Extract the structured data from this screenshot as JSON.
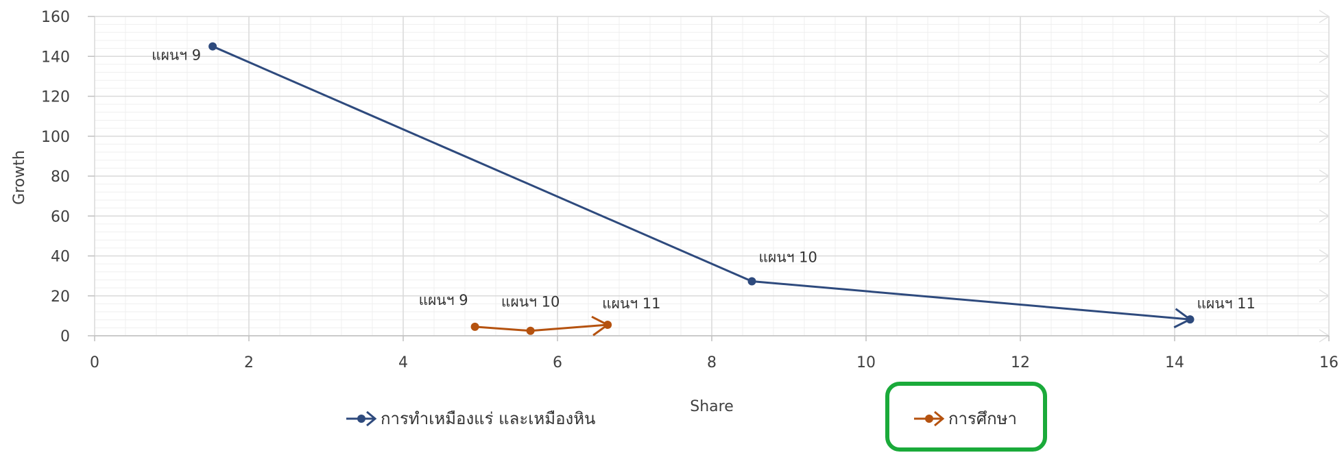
{
  "chart_data": {
    "type": "line",
    "xlabel": "Share",
    "ylabel": "Growth",
    "xlim": [
      0,
      16
    ],
    "ylim": [
      0,
      160
    ],
    "x_ticks": [
      0,
      2,
      4,
      6,
      8,
      10,
      12,
      14,
      16
    ],
    "y_ticks": [
      0,
      20,
      40,
      60,
      80,
      100,
      120,
      140,
      160
    ],
    "grid": true,
    "legend_position": "bottom",
    "series": [
      {
        "name": "การทำเหมืองแร่ และเหมืองหิน",
        "color": "#2e4a7d",
        "points": [
          {
            "x": 1.53,
            "y": 145,
            "label": "แผนฯ 9"
          },
          {
            "x": 8.52,
            "y": 27.3,
            "label": "แผนฯ 10"
          },
          {
            "x": 14.2,
            "y": 8.2,
            "label": "แผนฯ 11"
          }
        ]
      },
      {
        "name": "การศึกษา",
        "color": "#b5520f",
        "points": [
          {
            "x": 4.93,
            "y": 4.5,
            "label": "แผนฯ 9"
          },
          {
            "x": 5.65,
            "y": 2.5,
            "label": "แผนฯ 10"
          },
          {
            "x": 6.65,
            "y": 5.5,
            "label": "แผนฯ 11"
          }
        ]
      }
    ],
    "highlight": {
      "target": "legend",
      "series_index": 1,
      "color": "#1aaa3a"
    }
  }
}
